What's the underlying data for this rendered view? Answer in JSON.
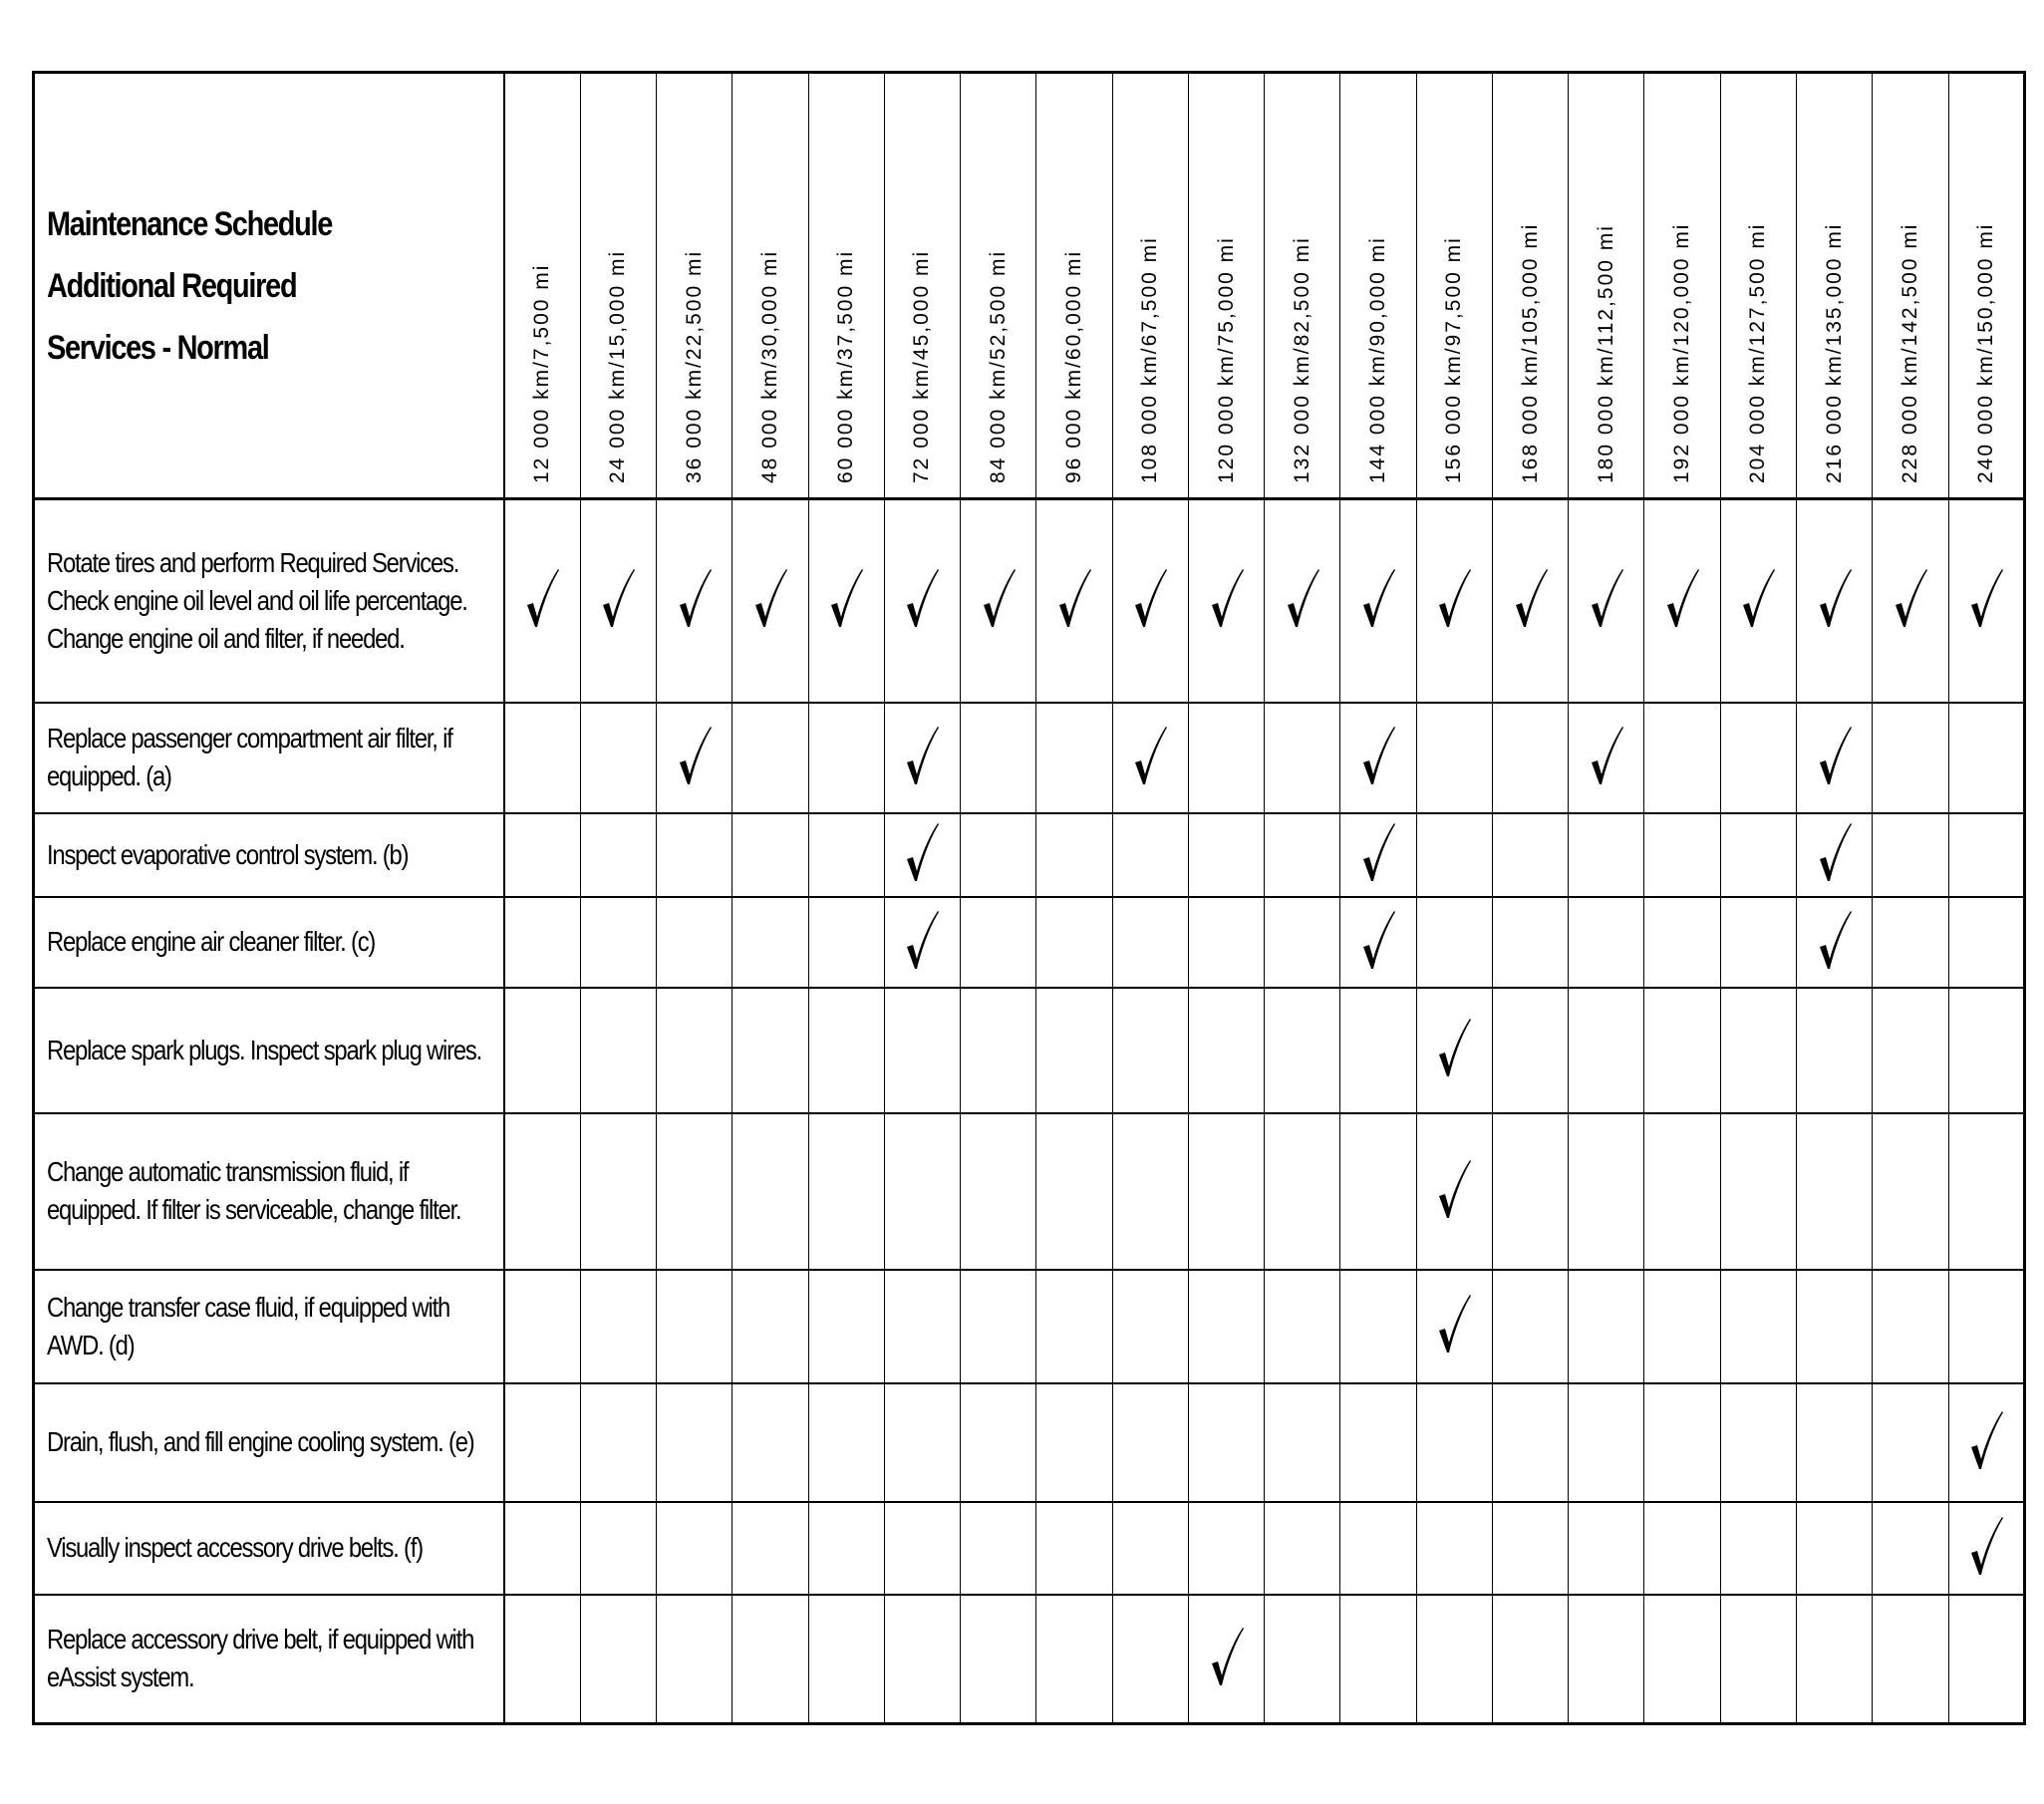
{
  "title_lines": [
    "Maintenance Schedule",
    "Additional Required",
    "Services - Normal"
  ],
  "intervals": [
    "12 000 km/7,500 mi",
    "24 000 km/15,000 mi",
    "36 000 km/22,500 mi",
    "48 000 km/30,000 mi",
    "60 000 km/37,500 mi",
    "72 000 km/45,000 mi",
    "84 000 km/52,500 mi",
    "96 000 km/60,000 mi",
    "108 000 km/67,500 mi",
    "120 000 km/75,000 mi",
    "132 000 km/82,500 mi",
    "144 000 km/90,000 mi",
    "156 000 km/97,500 mi",
    "168 000 km/105,000 mi",
    "180 000 km/112,500 mi",
    "192 000 km/120,000 mi",
    "204 000 km/127,500 mi",
    "216 000 km/135,000 mi",
    "228 000 km/142,500 mi",
    "240 000 km/150,000 mi"
  ],
  "check_icon": "checkmark-icon",
  "services": [
    {
      "text": "Rotate tires and perform Required Services. Check engine oil level and oil life percentage. Change engine oil and filter, if needed.",
      "checked": [
        0,
        1,
        2,
        3,
        4,
        5,
        6,
        7,
        8,
        9,
        10,
        11,
        12,
        13,
        14,
        15,
        16,
        17,
        18,
        19
      ]
    },
    {
      "text": "Replace passenger compartment air filter, if equipped.  (a)",
      "checked": [
        2,
        5,
        8,
        11,
        14,
        17
      ]
    },
    {
      "text": "Inspect evaporative control system.  (b)",
      "checked": [
        5,
        11,
        17
      ]
    },
    {
      "text": "Replace engine air cleaner filter.  (c)",
      "checked": [
        5,
        11,
        17
      ]
    },
    {
      "text": "Replace spark plugs. Inspect spark plug wires.",
      "checked": [
        12
      ]
    },
    {
      "text": "Change automatic transmission fluid, if equipped. If filter is serviceable, change filter.",
      "checked": [
        12
      ]
    },
    {
      "text": "Change transfer case fluid, if equipped with AWD.  (d)",
      "checked": [
        12
      ]
    },
    {
      "text": "Drain, flush, and fill engine cooling system.  (e)",
      "checked": [
        19
      ]
    },
    {
      "text": "Visually inspect accessory drive belts.  (f)",
      "checked": [
        19
      ]
    },
    {
      "text": "Replace accessory drive belt, if equipped with eAssist system.",
      "checked": [
        9
      ]
    }
  ]
}
